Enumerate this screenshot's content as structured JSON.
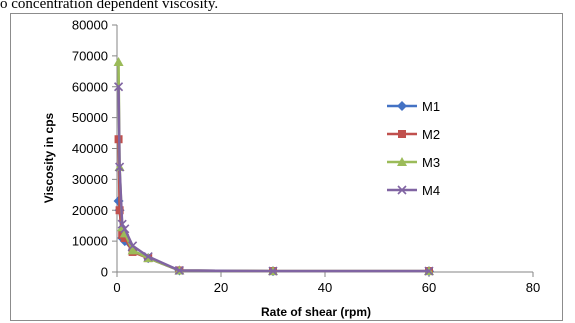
{
  "page": {
    "top_text": "o concentration dependent viscosity."
  },
  "chart_data": {
    "type": "line",
    "title": "",
    "xlabel": "Rate  of shear (rpm)",
    "ylabel": "Viscosity in cps",
    "xlim": [
      0,
      80
    ],
    "ylim": [
      0,
      80000
    ],
    "xticks": [
      0,
      20,
      40,
      60,
      80
    ],
    "yticks": [
      0,
      10000,
      20000,
      30000,
      40000,
      50000,
      60000,
      70000,
      80000
    ],
    "grid": false,
    "legend": "right",
    "x": [
      0.3,
      0.5,
      1,
      1.5,
      3,
      6,
      12,
      30,
      60
    ],
    "series": [
      {
        "name": "M1",
        "color": "#4472C4",
        "marker": "diamond",
        "values": [
          23000,
          20000,
          11000,
          10000,
          7000,
          4500,
          500,
          300,
          300
        ]
      },
      {
        "name": "M2",
        "color": "#C0504D",
        "marker": "square",
        "values": [
          43000,
          20000,
          12000,
          11000,
          6500,
          4500,
          500,
          300,
          300
        ]
      },
      {
        "name": "M3",
        "color": "#9BBB59",
        "marker": "triangle",
        "values": [
          68000,
          34000,
          14500,
          12500,
          7000,
          4500,
          500,
          300,
          300
        ]
      },
      {
        "name": "M4",
        "color": "#8064A2",
        "marker": "x",
        "values": [
          60000,
          34000,
          15500,
          14000,
          8500,
          5000,
          500,
          300,
          300
        ]
      }
    ]
  }
}
